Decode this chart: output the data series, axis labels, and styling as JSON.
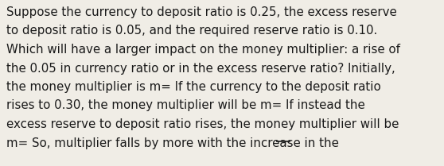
{
  "background_color": "#f0ede6",
  "text_color": "#1a1a1a",
  "font_size": 10.8,
  "font_family": "DejaVu Sans",
  "lines": [
    "Suppose the currency to deposit ratio is 0.25, the excess reserve",
    "to deposit ratio is 0.05, and the required reserve ratio is 0.10.",
    "Which will have a larger impact on the money multiplier: a rise of",
    "the 0.05 in currency ratio or in the excess reserve ratio? Initially,",
    "the money multiplier is m= If the currency to the deposit ratio",
    "rises to 0.30, the money multiplier will be m= If instead the",
    "excess reserve to deposit ratio rises, the money multiplier will be",
    "m= So, multiplier falls by more with the increase in the "
  ],
  "underline_text": "__",
  "fig_width": 5.58,
  "fig_height": 2.09,
  "dpi": 100
}
